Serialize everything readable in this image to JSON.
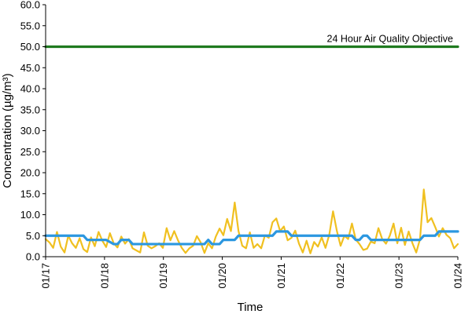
{
  "chart_data": {
    "type": "line",
    "title": "",
    "xlabel": "Time",
    "ylabel": "Concentration (µg/m³)",
    "ylim": [
      0,
      60
    ],
    "y_ticks": [
      "0.0",
      "5.0",
      "10.0",
      "15.0",
      "20.0",
      "25.0",
      "30.0",
      "35.0",
      "40.0",
      "45.0",
      "50.0",
      "55.0",
      "60.0"
    ],
    "x_ticks": [
      "01/17",
      "01/18",
      "01/19",
      "01/20",
      "01/21",
      "01/22",
      "01/23",
      "01/24"
    ],
    "grid": false,
    "annotations": [
      {
        "text": "24 Hour Air Quality Objective",
        "y": 50
      }
    ],
    "series": [
      {
        "color": "#f0c020",
        "values": [
          4.2,
          3.4,
          2.1,
          5.9,
          2.4,
          1.0,
          5.0,
          3.2,
          2.1,
          4.4,
          1.8,
          1.1,
          4.6,
          2.5,
          5.9,
          3.8,
          2.3,
          5.6,
          3.2,
          2.2,
          4.8,
          3.1,
          4.2,
          2.0,
          1.5,
          1.0,
          5.8,
          2.6,
          2.0,
          2.5,
          3.2,
          2.1,
          6.8,
          3.9,
          6.1,
          3.9,
          2.1,
          0.9,
          2.0,
          2.6,
          4.9,
          3.4,
          0.9,
          3.2,
          2.0,
          4.8,
          6.7,
          5.1,
          9.0,
          6.1,
          12.9,
          6.1,
          2.6,
          2.0,
          5.8,
          2.1,
          3.0,
          2.0,
          5.1,
          4.5,
          8.2,
          9.1,
          6.1,
          7.2,
          3.9,
          4.5,
          6.2,
          3.1,
          1.0,
          3.8,
          0.8,
          3.5,
          2.4,
          4.6,
          2.1,
          5.2,
          10.8,
          6.2,
          2.6,
          5.0,
          4.2,
          7.9,
          4.1,
          3.0,
          1.6,
          1.9,
          3.6,
          3.2,
          6.8,
          4.2,
          3.1,
          5.0,
          7.9,
          3.2,
          6.9,
          2.8,
          6.0,
          3.2,
          1.0,
          4.2,
          16.0,
          8.2,
          9.2,
          7.1,
          4.8,
          6.8,
          5.2,
          4.4,
          2.0,
          3.0
        ]
      },
      {
        "color": "#2b97e0",
        "values": [
          5,
          5,
          5,
          5,
          5,
          5,
          5,
          5,
          5,
          5,
          5,
          4,
          4,
          4,
          4,
          4,
          4,
          3.5,
          3,
          3,
          4,
          4,
          4,
          3,
          3,
          3,
          3,
          3,
          3,
          3,
          3,
          3,
          3,
          3,
          3,
          3,
          3,
          3,
          3,
          3,
          3,
          3,
          3,
          4,
          3,
          3,
          3,
          4,
          4,
          4,
          4,
          5,
          5,
          5,
          5,
          5,
          5,
          5,
          5,
          5,
          5,
          6,
          6,
          6,
          6,
          5,
          5,
          5,
          5,
          5,
          5,
          5,
          5,
          5,
          5,
          5,
          5,
          5,
          5,
          5,
          5,
          5,
          4,
          4,
          5,
          5,
          4,
          4,
          4,
          4,
          4,
          4,
          4,
          4,
          4,
          4,
          4,
          4,
          4,
          4,
          5,
          5,
          5,
          5,
          6,
          6,
          6,
          6,
          6,
          6
        ]
      },
      {
        "color": "#1f7a1f",
        "values": [
          50,
          50
        ]
      }
    ]
  }
}
